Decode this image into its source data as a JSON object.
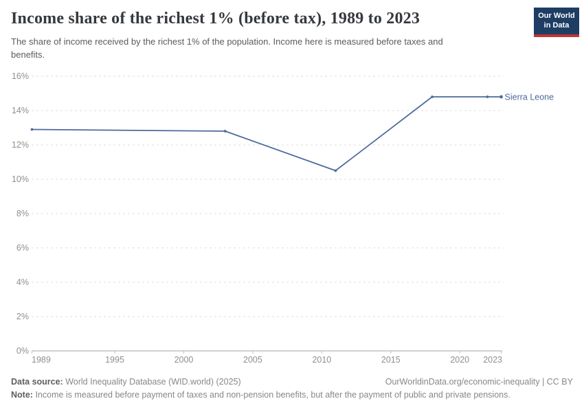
{
  "header": {
    "title": "Income share of the richest 1% (before tax), 1989 to 2023",
    "subtitle": "The share of income received by the richest 1% of the population. Income here is measured before taxes and benefits.",
    "logo": {
      "line1": "Our World",
      "line2": "in Data"
    }
  },
  "chart_data": {
    "type": "line",
    "title": "Income share of the richest 1% (before tax), 1989 to 2023",
    "entity_label": "Sierra Leone",
    "series": [
      {
        "name": "Sierra Leone",
        "color": "#4c6a9c",
        "points": [
          {
            "year": 1989,
            "value": 12.9
          },
          {
            "year": 2003,
            "value": 12.8
          },
          {
            "year": 2011,
            "value": 10.5
          },
          {
            "year": 2018,
            "value": 14.8
          },
          {
            "year": 2022,
            "value": 14.8
          },
          {
            "year": 2023,
            "value": 14.8
          }
        ]
      }
    ],
    "xlim": [
      1989,
      2023
    ],
    "ylim": [
      0,
      16
    ],
    "xticks": [
      1989,
      1995,
      2000,
      2005,
      2010,
      2015,
      2020,
      2023
    ],
    "xtick_labels": [
      "1989",
      "1995",
      "2000",
      "2005",
      "2010",
      "2015",
      "2020",
      "2023"
    ],
    "yticks": [
      0,
      2,
      4,
      6,
      8,
      10,
      12,
      14,
      16
    ],
    "ytick_labels": [
      "0%",
      "2%",
      "4%",
      "6%",
      "8%",
      "10%",
      "12%",
      "14%",
      "16%"
    ],
    "grid": "horizontal-dashed",
    "legend_position": "end-of-line-label"
  },
  "footer": {
    "data_source_label": "Data source:",
    "data_source_text": "World Inequality Database (WID.world) (2025)",
    "citation_text": "OurWorldinData.org/economic-inequality | CC BY",
    "note_label": "Note:",
    "note_text": "Income is measured before payment of taxes and non-pension benefits, but after the payment of public and private pensions."
  },
  "colors": {
    "line": "#4c6a9c",
    "entity_label": "#4c6a9c",
    "title": "#35393d",
    "subtitle": "#5b5b5b",
    "axis_label": "#8f8f8f",
    "gridline": "#dcdcdc",
    "axis_line": "#a3a3a3",
    "tick": "#c0c0c0",
    "footer_text": "#878787",
    "logo_bg": "#1d3d63",
    "logo_red": "#c23335"
  }
}
